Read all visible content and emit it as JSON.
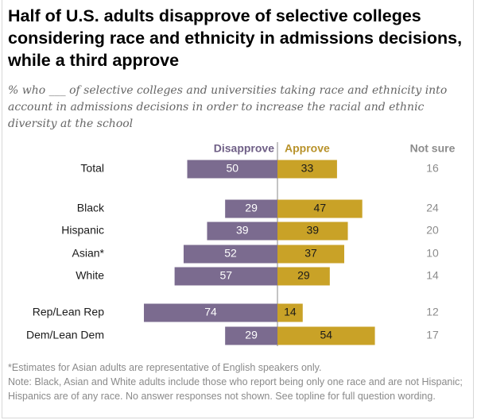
{
  "title": "Half of U.S. adults disapprove of selective colleges considering race and ethnicity in admissions decisions, while a third approve",
  "subtitle": "% who ___ of selective colleges and universities taking race and ethnicity into account in admissions decisions in order to increase the racial and ethnic diversity at the school",
  "notes": {
    "asterisk": "*Estimates for Asian adults are representative of English speakers only.",
    "note": "Note: Black, Asian and White adults include those who report being only one race and are not Hispanic; Hispanics are of any race. No answer responses not shown. See topline for full question wording."
  },
  "colors": {
    "disapprove": "#7b6b8f",
    "approve": "#c9a227",
    "disapprove_header": "#6f5f86",
    "approve_header": "#b8922a",
    "not_sure": "#8c8c8c"
  },
  "chart_data": {
    "type": "bar",
    "orientation": "horizontal-diverging",
    "column_headers": {
      "disapprove": "Disapprove",
      "approve": "Approve",
      "not_sure": "Not sure"
    },
    "categories": [
      "Total",
      "Black",
      "Hispanic",
      "Asian*",
      "White",
      "Rep/Lean Rep",
      "Dem/Lean Dem"
    ],
    "groups": [
      [
        "Total"
      ],
      [
        "Black",
        "Hispanic",
        "Asian*",
        "White"
      ],
      [
        "Rep/Lean Rep",
        "Dem/Lean Dem"
      ]
    ],
    "series": [
      {
        "name": "Disapprove",
        "values": [
          50,
          29,
          39,
          52,
          57,
          74,
          29
        ]
      },
      {
        "name": "Approve",
        "values": [
          33,
          47,
          39,
          37,
          29,
          14,
          54
        ]
      }
    ],
    "not_sure": [
      16,
      24,
      20,
      10,
      14,
      12,
      17
    ],
    "xlim": [
      -74,
      54
    ]
  }
}
